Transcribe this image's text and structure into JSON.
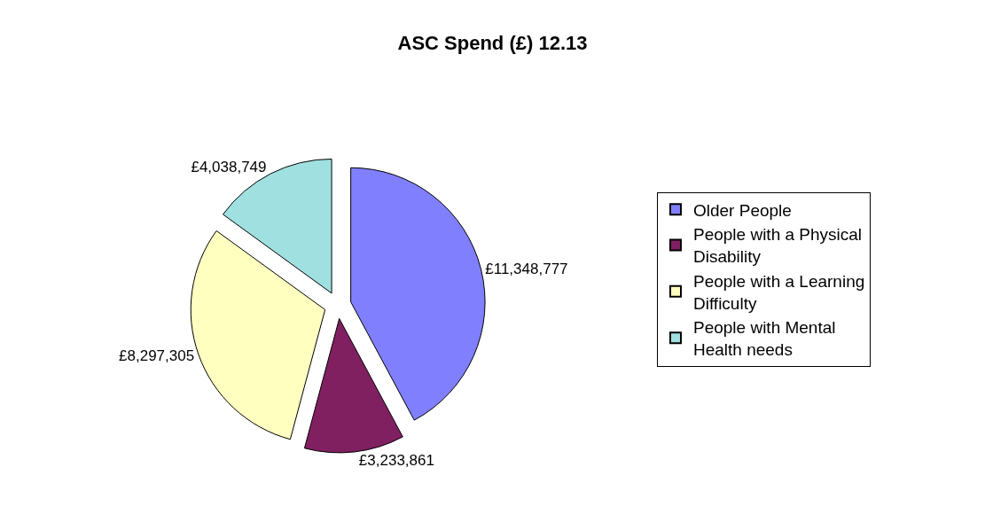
{
  "chart_data": {
    "type": "pie",
    "title": "ASC Spend (£) 12.13",
    "categories": [
      "Older People",
      "People with a Physical Disability",
      "People with a Learning Difficulty",
      "People with Mental Health needs"
    ],
    "values": [
      11348777,
      3233861,
      8297305,
      4038749
    ],
    "value_labels": [
      "£11,348,777",
      "£3,233,861",
      "£8,297,305",
      "£4,038,749"
    ],
    "colors": [
      "#8080ff",
      "#802060",
      "#ffffc0",
      "#a0e0e0"
    ],
    "legend": "right"
  }
}
